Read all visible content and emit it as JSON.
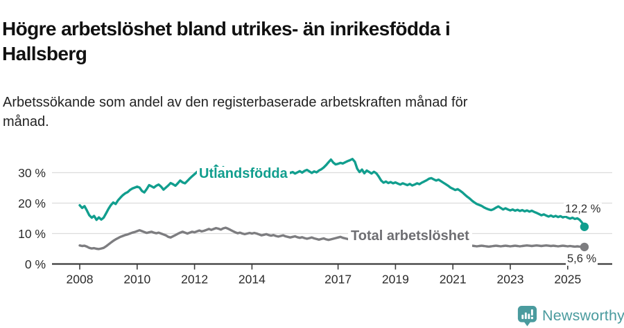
{
  "header": {
    "title_lines": [
      "Högre arbetslöshet bland utrikes- än inrikesfödda i",
      "Hallsberg"
    ],
    "subtitle_lines": [
      "Arbetssökande som andel av den registerbaserade arbetskraften månad för",
      "månad."
    ]
  },
  "chart_data": {
    "type": "line",
    "unit": "%",
    "frequency": "monthly",
    "x_start": "2008-01",
    "x_end": "2025-08",
    "grid": "horizontal",
    "legend_position": "inline-labels",
    "ylim": [
      0,
      35
    ],
    "y_ticks": [
      0,
      10,
      20,
      30
    ],
    "y_tick_labels": [
      "0 %",
      "10 %",
      "20 %",
      "30 %"
    ],
    "x_ticks": [
      "2008",
      "2010",
      "2012",
      "2014",
      "2017",
      "2019",
      "2021",
      "2023",
      "2025"
    ],
    "series": [
      {
        "id": "utlandsfodda",
        "name": "Utlandsfödda",
        "color": "#119E8E",
        "last_value": 12.2,
        "last_value_label": "12,2 %",
        "values": [
          19.3,
          18.4,
          19.0,
          17.6,
          16.0,
          15.2,
          15.8,
          14.5,
          15.3,
          14.6,
          15.2,
          16.6,
          18.1,
          19.3,
          20.2,
          19.7,
          20.9,
          21.8,
          22.6,
          23.2,
          23.6,
          24.3,
          24.8,
          25.1,
          25.4,
          25.1,
          24.0,
          23.5,
          24.6,
          25.9,
          25.5,
          25.1,
          25.7,
          26.1,
          25.4,
          24.4,
          25.1,
          25.8,
          26.6,
          26.2,
          25.7,
          26.5,
          27.4,
          26.8,
          26.5,
          27.3,
          28.1,
          28.8,
          29.5,
          30.2,
          30.9,
          30.4,
          29.8,
          30.5,
          31.2,
          30.6,
          31.5,
          32.3,
          31.6,
          30.9,
          31.8,
          31.1,
          30.4,
          30.8,
          30.1,
          29.7,
          30.3,
          29.8,
          30.2,
          29.6,
          29.9,
          30.3,
          29.7,
          30.0,
          30.3,
          29.8,
          29.4,
          29.8,
          30.2,
          29.7,
          29.4,
          29.8,
          30.1,
          29.6,
          29.9,
          30.3,
          29.9,
          30.4,
          29.9,
          30.2,
          29.7,
          30.1,
          30.5,
          30.0,
          30.6,
          30.9,
          30.4,
          29.9,
          30.4,
          30.1,
          30.7,
          31.1,
          31.7,
          32.5,
          33.4,
          34.3,
          33.3,
          32.7,
          32.9,
          33.2,
          33.0,
          33.4,
          33.8,
          34.1,
          34.5,
          33.6,
          31.3,
          30.2,
          31.0,
          29.8,
          30.7,
          30.2,
          29.7,
          30.3,
          29.8,
          28.7,
          27.4,
          26.7,
          27.1,
          26.6,
          26.9,
          26.5,
          26.8,
          26.4,
          26.1,
          26.5,
          26.2,
          25.9,
          26.3,
          25.8,
          26.1,
          26.5,
          26.2,
          26.7,
          27.1,
          27.5,
          28.0,
          28.2,
          27.8,
          27.4,
          27.7,
          27.2,
          26.7,
          26.2,
          25.7,
          25.1,
          24.7,
          24.3,
          24.6,
          24.1,
          23.5,
          22.8,
          22.1,
          21.5,
          20.8,
          20.2,
          19.7,
          19.4,
          19.1,
          18.6,
          18.2,
          17.9,
          17.7,
          18.0,
          18.5,
          18.9,
          18.4,
          17.9,
          18.3,
          17.9,
          17.6,
          17.9,
          17.5,
          17.8,
          17.4,
          17.7,
          17.3,
          17.6,
          17.2,
          17.5,
          17.1,
          16.8,
          16.4,
          16.0,
          16.3,
          15.9,
          15.6,
          15.9,
          15.5,
          15.8,
          15.4,
          15.7,
          15.3,
          15.6,
          15.2,
          14.9,
          15.2,
          14.8,
          15.0,
          14.5,
          13.6,
          12.2
        ]
      },
      {
        "id": "total",
        "name": "Total arbetslöshet",
        "color": "#7D7D80",
        "last_value": 5.6,
        "last_value_label": "5,6 %",
        "values": [
          6.1,
          5.9,
          6.0,
          5.7,
          5.3,
          5.1,
          5.2,
          5.0,
          4.9,
          5.1,
          5.3,
          5.8,
          6.4,
          7.0,
          7.6,
          8.1,
          8.5,
          8.9,
          9.2,
          9.5,
          9.7,
          10.0,
          10.3,
          10.5,
          10.8,
          11.1,
          10.8,
          10.5,
          10.2,
          10.4,
          10.6,
          10.3,
          10.1,
          10.3,
          10.0,
          9.7,
          9.4,
          8.9,
          8.7,
          9.1,
          9.5,
          9.9,
          10.3,
          10.6,
          10.3,
          10.0,
          10.3,
          10.6,
          10.4,
          10.7,
          11.0,
          10.7,
          10.9,
          11.2,
          11.5,
          11.2,
          11.5,
          11.8,
          11.6,
          11.3,
          11.7,
          11.9,
          11.6,
          11.2,
          10.8,
          10.4,
          10.1,
          10.3,
          10.0,
          9.8,
          10.0,
          10.2,
          10.0,
          10.2,
          10.0,
          9.7,
          9.4,
          9.6,
          9.8,
          9.5,
          9.3,
          9.5,
          9.2,
          9.0,
          9.2,
          9.4,
          9.1,
          8.9,
          8.7,
          8.9,
          9.1,
          8.8,
          8.6,
          8.8,
          8.5,
          8.3,
          8.5,
          8.7,
          8.4,
          8.2,
          8.0,
          8.2,
          8.4,
          8.1,
          7.9,
          8.1,
          8.3,
          8.5,
          8.7,
          8.9,
          8.6,
          8.4,
          8.2,
          8.0,
          7.8,
          7.6,
          7.5,
          7.7,
          7.5,
          7.3,
          7.2,
          7.0,
          6.9,
          6.8,
          6.7,
          6.6,
          6.5,
          6.4,
          6.5,
          6.4,
          6.3,
          6.4,
          6.5,
          6.4,
          6.3,
          6.4,
          6.3,
          6.4,
          6.5,
          6.4,
          6.5,
          6.6,
          6.7,
          6.8,
          6.9,
          7.1,
          7.4,
          7.6,
          7.5,
          7.4,
          7.3,
          7.2,
          7.1,
          6.9,
          6.8,
          6.7,
          6.6,
          6.7,
          6.6,
          6.5,
          6.4,
          6.3,
          6.2,
          6.1,
          6.0,
          5.9,
          5.8,
          5.9,
          6.0,
          5.9,
          5.8,
          5.7,
          5.8,
          5.9,
          6.0,
          5.9,
          5.8,
          5.9,
          6.0,
          5.9,
          5.8,
          5.9,
          6.0,
          5.9,
          5.8,
          5.9,
          6.0,
          6.1,
          6.0,
          5.9,
          6.0,
          6.1,
          6.0,
          5.9,
          6.0,
          6.1,
          6.0,
          5.9,
          6.0,
          5.9,
          5.8,
          5.9,
          6.0,
          5.9,
          5.8,
          5.9,
          5.8,
          5.7,
          5.8,
          5.7,
          5.6,
          5.6
        ]
      }
    ]
  },
  "footer": {
    "brand": "Newsworthy",
    "brand_color": "#4A9B9E"
  },
  "colors": {
    "foreign_born_line": "#119E8E",
    "total_line": "#7D7D80",
    "axis": "#3B3B3B",
    "gridline": "#DCDCDC"
  }
}
